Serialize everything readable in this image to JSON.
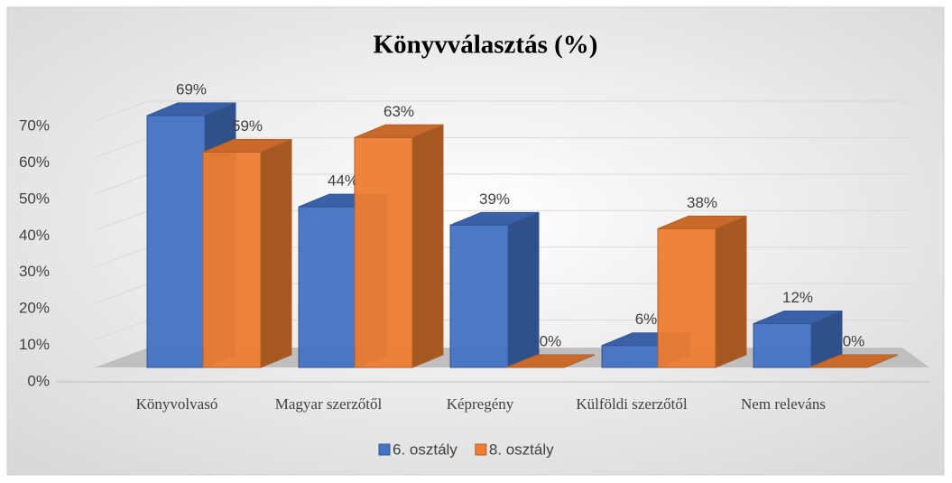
{
  "chart_data": {
    "type": "bar3d",
    "title": "Könyvválasztás (%)",
    "categories": [
      "Könyvolvasó",
      "Magyar szerzőtől",
      "Képregény",
      "Külföldi szerzőtől",
      "Nem releváns"
    ],
    "series": [
      {
        "name": "6. osztály",
        "color": "#4472c4",
        "values": [
          69,
          44,
          39,
          6,
          12
        ],
        "value_labels": [
          "69%",
          "44%",
          "39%",
          "6%",
          "12%"
        ]
      },
      {
        "name": "8. osztály",
        "color": "#ed7d31",
        "values": [
          59,
          63,
          0,
          38,
          0
        ],
        "value_labels": [
          "59%",
          "63%",
          "0%",
          "38%",
          "0%"
        ]
      }
    ],
    "ylim": [
      0,
      70
    ],
    "yticks": [
      {
        "value": 0,
        "label": "0%"
      },
      {
        "value": 10,
        "label": "10%"
      },
      {
        "value": 20,
        "label": "20%"
      },
      {
        "value": 30,
        "label": "30%"
      },
      {
        "value": 40,
        "label": "40%"
      },
      {
        "value": 50,
        "label": "50%"
      },
      {
        "value": 60,
        "label": "60%"
      },
      {
        "value": 70,
        "label": "70%"
      }
    ],
    "grid": true,
    "legend": "bottom"
  }
}
